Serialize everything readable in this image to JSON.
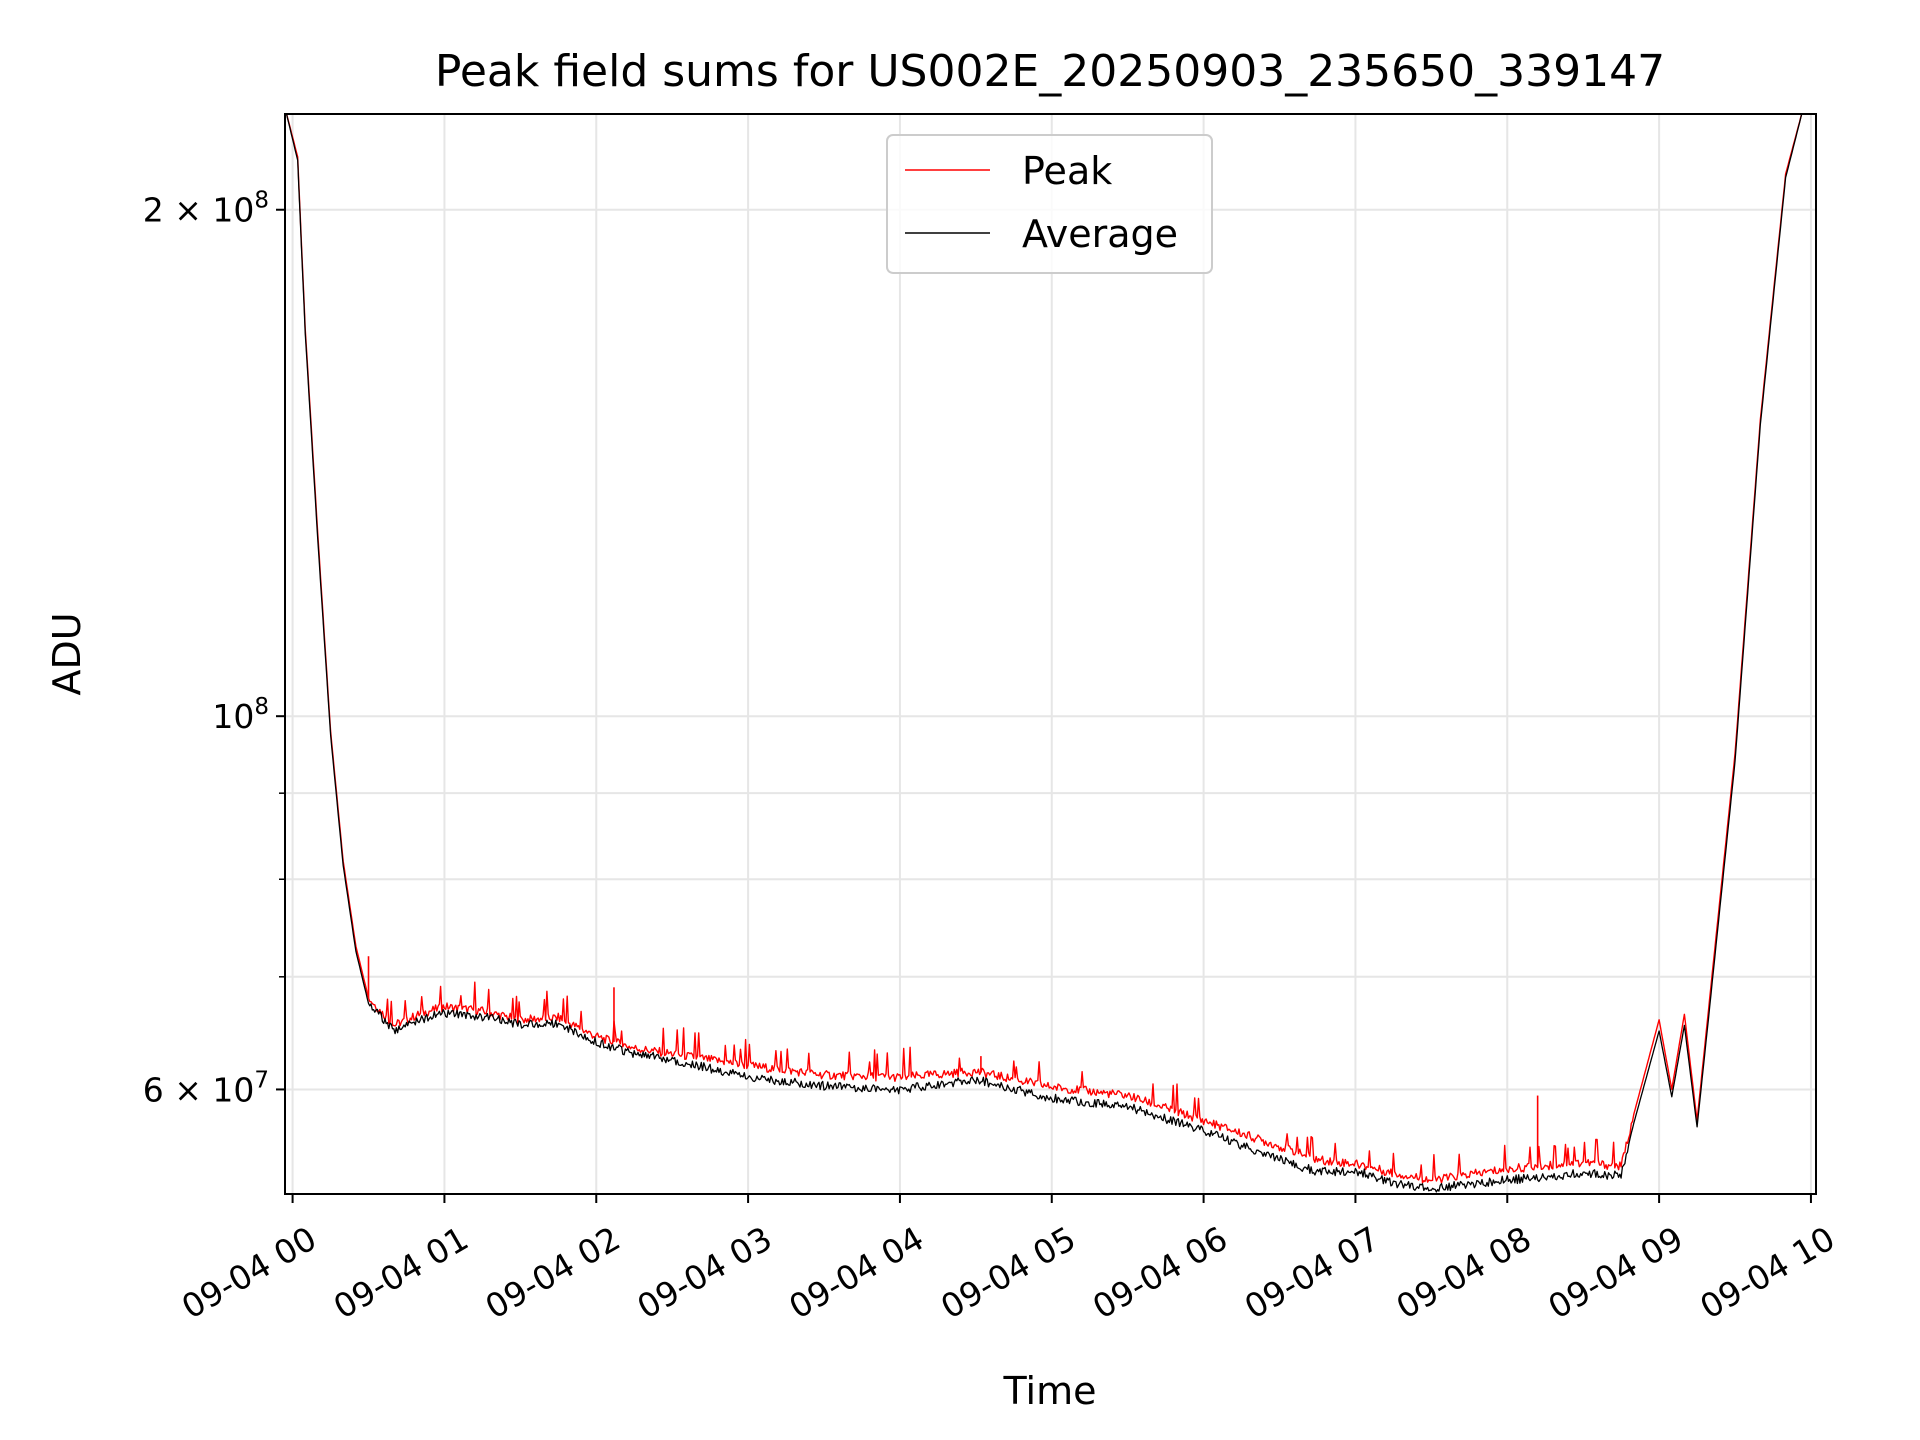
{
  "chart_data": {
    "type": "line",
    "title": "Peak field sums for US002E_20250903_235650_339147",
    "xlabel": "Time",
    "ylabel": "ADU",
    "yscale": "log",
    "ylim": [
      52000000,
      228000000
    ],
    "xlim": [
      "09-03 23:57",
      "09-04 10:02"
    ],
    "grid": true,
    "legend_position": "upper center",
    "x_tick_labels": [
      "09-04 00",
      "09-04 01",
      "09-04 02",
      "09-04 03",
      "09-04 04",
      "09-04 05",
      "09-04 06",
      "09-04 07",
      "09-04 08",
      "09-04 09",
      "09-04 10"
    ],
    "y_tick_labels": [
      {
        "value": 200000000,
        "mantissa": "2",
        "exponent": "8"
      },
      {
        "value": 100000000,
        "mantissa": "",
        "exponent": "8"
      },
      {
        "value": 60000000,
        "mantissa": "6",
        "exponent": "7"
      }
    ],
    "y_minor_ticks": [
      70000000,
      80000000,
      90000000
    ],
    "series": [
      {
        "name": "Peak",
        "color": "#ff0000",
        "points": [
          [
            "09-03 23:57",
            230000000
          ],
          [
            "09-04 00:02",
            215000000
          ],
          [
            "09-04 00:05",
            170000000
          ],
          [
            "09-04 00:10",
            128000000
          ],
          [
            "09-04 00:15",
            98000000
          ],
          [
            "09-04 00:20",
            82000000
          ],
          [
            "09-04 00:25",
            73000000
          ],
          [
            "09-04 00:30",
            68000000
          ],
          [
            "09-04 00:40",
            65500000
          ],
          [
            "09-04 00:50",
            66500000
          ],
          [
            "09-04 01:00",
            67200000
          ],
          [
            "09-04 01:15",
            66800000
          ],
          [
            "09-04 01:30",
            66000000
          ],
          [
            "09-04 01:45",
            66200000
          ],
          [
            "09-04 02:00",
            64500000
          ],
          [
            "09-04 02:15",
            63500000
          ],
          [
            "09-04 02:30",
            63000000
          ],
          [
            "09-04 03:00",
            62000000
          ],
          [
            "09-04 03:30",
            61200000
          ],
          [
            "09-04 04:00",
            61000000
          ],
          [
            "09-04 04:30",
            61500000
          ],
          [
            "09-04 05:00",
            60200000
          ],
          [
            "09-04 05:30",
            59500000
          ],
          [
            "09-04 06:00",
            57500000
          ],
          [
            "09-04 06:30",
            55500000
          ],
          [
            "09-04 06:45",
            54500000
          ],
          [
            "09-04 07:00",
            54200000
          ],
          [
            "09-04 07:15",
            53500000
          ],
          [
            "09-04 07:30",
            53000000
          ],
          [
            "09-04 08:00",
            53800000
          ],
          [
            "09-04 08:30",
            54300000
          ],
          [
            "09-04 08:45",
            54000000
          ],
          [
            "09-04 08:50",
            58000000
          ],
          [
            "09-04 09:00",
            66000000
          ],
          [
            "09-04 09:05",
            60000000
          ],
          [
            "09-04 09:10",
            66500000
          ],
          [
            "09-04 09:15",
            57500000
          ],
          [
            "09-04 09:20",
            68000000
          ],
          [
            "09-04 09:30",
            95000000
          ],
          [
            "09-04 09:40",
            150000000
          ],
          [
            "09-04 09:50",
            210000000
          ],
          [
            "09-04 09:57",
            230000000
          ]
        ]
      },
      {
        "name": "Average",
        "color": "#000000",
        "points": [
          [
            "09-03 23:57",
            230000000
          ],
          [
            "09-04 00:02",
            214000000
          ],
          [
            "09-04 00:05",
            169000000
          ],
          [
            "09-04 00:10",
            127000000
          ],
          [
            "09-04 00:15",
            97500000
          ],
          [
            "09-04 00:20",
            81500000
          ],
          [
            "09-04 00:25",
            72500000
          ],
          [
            "09-04 00:30",
            67500000
          ],
          [
            "09-04 00:40",
            65000000
          ],
          [
            "09-04 00:50",
            66000000
          ],
          [
            "09-04 01:00",
            66600000
          ],
          [
            "09-04 01:15",
            66300000
          ],
          [
            "09-04 01:30",
            65600000
          ],
          [
            "09-04 01:45",
            65700000
          ],
          [
            "09-04 02:00",
            64000000
          ],
          [
            "09-04 02:15",
            63000000
          ],
          [
            "09-04 02:30",
            62500000
          ],
          [
            "09-04 03:00",
            61000000
          ],
          [
            "09-04 03:30",
            60300000
          ],
          [
            "09-04 04:00",
            60000000
          ],
          [
            "09-04 04:30",
            60800000
          ],
          [
            "09-04 05:00",
            59300000
          ],
          [
            "09-04 05:30",
            58600000
          ],
          [
            "09-04 06:00",
            56700000
          ],
          [
            "09-04 06:30",
            54500000
          ],
          [
            "09-04 06:45",
            53600000
          ],
          [
            "09-04 07:00",
            53700000
          ],
          [
            "09-04 07:15",
            52800000
          ],
          [
            "09-04 07:30",
            52400000
          ],
          [
            "09-04 08:00",
            53000000
          ],
          [
            "09-04 08:30",
            53500000
          ],
          [
            "09-04 08:45",
            53300000
          ],
          [
            "09-04 08:50",
            57300000
          ],
          [
            "09-04 09:00",
            65000000
          ],
          [
            "09-04 09:05",
            59400000
          ],
          [
            "09-04 09:10",
            65500000
          ],
          [
            "09-04 09:15",
            57000000
          ],
          [
            "09-04 09:20",
            67200000
          ],
          [
            "09-04 09:30",
            94000000
          ],
          [
            "09-04 09:40",
            149000000
          ],
          [
            "09-04 09:50",
            209000000
          ],
          [
            "09-04 09:57",
            230000000
          ]
        ]
      }
    ],
    "annotations": [
      {
        "series": "Peak",
        "time": "09-04 00:30",
        "value": 72000000
      },
      {
        "series": "Peak",
        "time": "09-04 02:07",
        "value": 69000000
      },
      {
        "series": "Peak",
        "time": "09-04 04:32",
        "value": 62800000
      },
      {
        "series": "Peak",
        "time": "09-04 08:12",
        "value": 59500000
      }
    ]
  }
}
